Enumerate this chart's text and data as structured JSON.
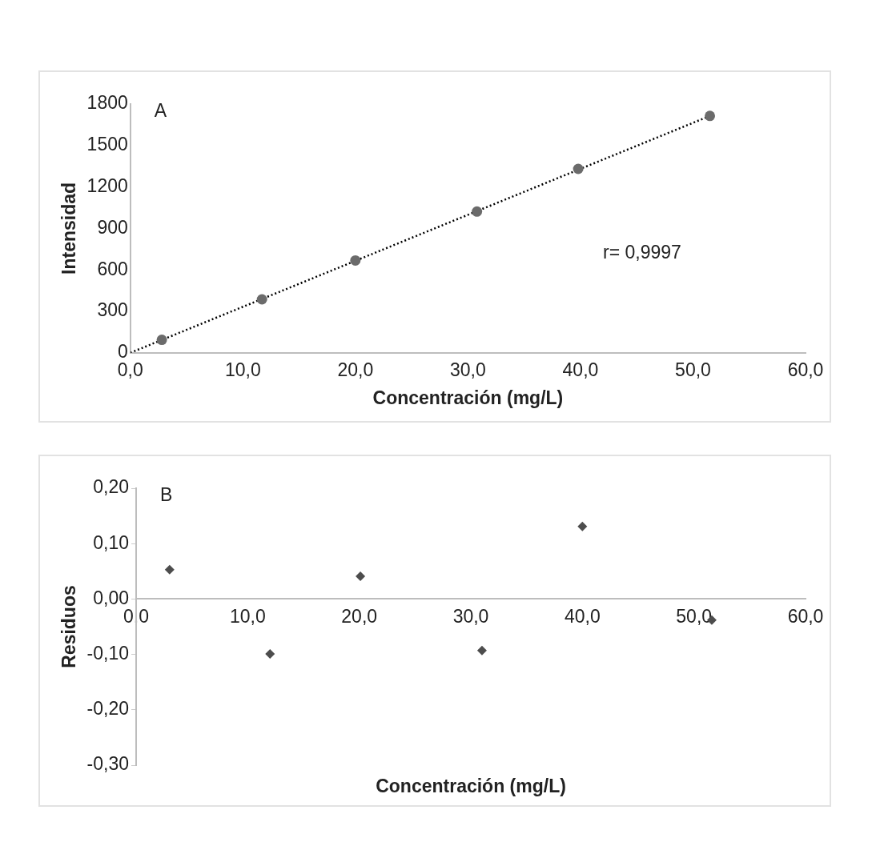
{
  "chart_data": [
    {
      "type": "scatter",
      "xlabel": "Concentración (mg/L)",
      "ylabel": "Intensidad",
      "annotations": [
        "A",
        "r= 0,9997"
      ],
      "x": [
        2.8,
        11.7,
        20.0,
        30.8,
        39.8,
        51.5
      ],
      "series": [
        {
          "type": "scatter",
          "color": "#6b6b6b",
          "marker": "circle",
          "values": [
            94,
            387,
            668,
            1022,
            1331,
            1714
          ]
        },
        {
          "type": "line",
          "color": "#000000",
          "marker": "none",
          "line_style": "dotted",
          "x": [
            0,
            51.5
          ],
          "values": [
            0,
            1714
          ]
        }
      ],
      "xlim": [
        0,
        60
      ],
      "xticks": [
        {
          "value": 0,
          "label": "0,0"
        },
        {
          "value": 10,
          "label": "10,0"
        },
        {
          "value": 20,
          "label": "20,0"
        },
        {
          "value": 30,
          "label": "30,0"
        },
        {
          "value": 40,
          "label": "40,0"
        },
        {
          "value": 50,
          "label": "50,0"
        },
        {
          "value": 60,
          "label": "60,0"
        }
      ],
      "ylim": [
        0,
        1800
      ],
      "yticks": [
        0,
        300,
        600,
        900,
        1200,
        1500,
        1800
      ],
      "grid": false,
      "legend": false
    },
    {
      "type": "scatter",
      "xlabel": "Concentración (mg/L)",
      "ylabel": "Residuos",
      "annotations": [
        "B"
      ],
      "x": [
        3.0,
        12.0,
        20.1,
        31.0,
        40.0,
        51.6
      ],
      "series": [
        {
          "type": "scatter",
          "color": "#4d4d4d",
          "marker": "diamond",
          "values": [
            0.053,
            -0.099,
            0.041,
            -0.093,
            0.131,
            -0.038
          ]
        }
      ],
      "xlim": [
        0,
        60
      ],
      "xticks": [
        {
          "value": 0,
          "label": "0,0"
        },
        {
          "value": 10,
          "label": "10,0"
        },
        {
          "value": 20,
          "label": "20,0"
        },
        {
          "value": 30,
          "label": "30,0"
        },
        {
          "value": 40,
          "label": "40,0"
        },
        {
          "value": 50,
          "label": "50,0"
        },
        {
          "value": 60,
          "label": "60,0"
        }
      ],
      "ylim": [
        -0.3,
        0.2
      ],
      "yticks": [
        {
          "value": 0.2,
          "label": "0,20"
        },
        {
          "value": 0.1,
          "label": "0,10"
        },
        {
          "value": 0,
          "label": "0,00"
        },
        {
          "value": -0.1,
          "label": "-0,10"
        },
        {
          "value": -0.2,
          "label": "-0,20"
        },
        {
          "value": -0.3,
          "label": "-0,30"
        }
      ],
      "grid": false,
      "legend": false
    }
  ]
}
